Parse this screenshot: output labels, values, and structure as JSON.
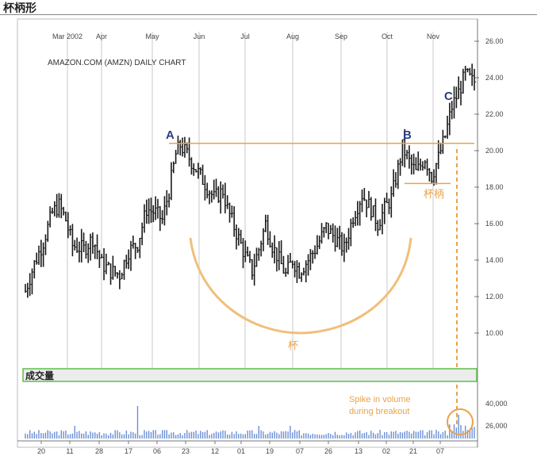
{
  "page_title": "杯柄形",
  "chart_data": {
    "type": "candlestick",
    "title": "AMAZON.COM (AMZN) DAILY CHART",
    "months": [
      "Mar 2002",
      "Apr",
      "May",
      "Jun",
      "Jul",
      "Aug",
      "Sep",
      "Oct",
      "Nov"
    ],
    "x_tick_labels": [
      "20",
      "11",
      "28",
      "17",
      "06",
      "23",
      "12",
      "01",
      "19",
      "07",
      "26",
      "13",
      "02",
      "21",
      "07"
    ],
    "price_axis": {
      "ticks": [
        "26.00",
        "24.00",
        "22.00",
        "20.00",
        "18.00",
        "16.00",
        "14.00",
        "12.00",
        "10.00"
      ],
      "ylim": [
        8.5,
        26.5
      ]
    },
    "volume_axis": {
      "ticks": [
        "40,000",
        "26,000"
      ]
    },
    "volume_label": "成交量",
    "price_path": [
      {
        "x": 0,
        "close": 12.3
      },
      {
        "x": 4,
        "close": 13.8
      },
      {
        "x": 8,
        "close": 15.0
      },
      {
        "x": 12,
        "close": 16.6
      },
      {
        "x": 15,
        "close": 17.0
      },
      {
        "x": 18,
        "close": 16.2
      },
      {
        "x": 21,
        "close": 14.8
      },
      {
        "x": 26,
        "close": 14.6
      },
      {
        "x": 30,
        "close": 15.2
      },
      {
        "x": 34,
        "close": 13.8
      },
      {
        "x": 38,
        "close": 13.4
      },
      {
        "x": 42,
        "close": 13.2
      },
      {
        "x": 46,
        "close": 14.5
      },
      {
        "x": 50,
        "close": 14.9
      },
      {
        "x": 54,
        "close": 16.8
      },
      {
        "x": 58,
        "close": 16.6
      },
      {
        "x": 61,
        "close": 16.2
      },
      {
        "x": 64,
        "close": 17.8
      },
      {
        "x": 67,
        "close": 19.8
      },
      {
        "x": 69,
        "close": 20.3
      },
      {
        "x": 72,
        "close": 19.8
      },
      {
        "x": 76,
        "close": 19.0
      },
      {
        "x": 80,
        "close": 18.2
      },
      {
        "x": 84,
        "close": 17.4
      },
      {
        "x": 88,
        "close": 17.8
      },
      {
        "x": 90,
        "close": 16.8
      },
      {
        "x": 94,
        "close": 15.5
      },
      {
        "x": 98,
        "close": 14.2
      },
      {
        "x": 101,
        "close": 13.4
      },
      {
        "x": 104,
        "close": 14.6
      },
      {
        "x": 107,
        "close": 16.0
      },
      {
        "x": 110,
        "close": 14.8
      },
      {
        "x": 113,
        "close": 14.0
      },
      {
        "x": 116,
        "close": 13.2
      },
      {
        "x": 119,
        "close": 14.0
      },
      {
        "x": 122,
        "close": 13.4
      },
      {
        "x": 126,
        "close": 14.0
      },
      {
        "x": 130,
        "close": 14.8
      },
      {
        "x": 134,
        "close": 15.8
      },
      {
        "x": 138,
        "close": 15.2
      },
      {
        "x": 142,
        "close": 14.6
      },
      {
        "x": 146,
        "close": 16.4
      },
      {
        "x": 150,
        "close": 17.6
      },
      {
        "x": 154,
        "close": 16.8
      },
      {
        "x": 157,
        "close": 16.0
      },
      {
        "x": 160,
        "close": 16.8
      },
      {
        "x": 163,
        "close": 17.4
      },
      {
        "x": 166,
        "close": 19.0
      },
      {
        "x": 168,
        "close": 20.2
      },
      {
        "x": 171,
        "close": 19.4
      },
      {
        "x": 174,
        "close": 18.8
      },
      {
        "x": 178,
        "close": 19.6
      },
      {
        "x": 181,
        "close": 18.6
      },
      {
        "x": 184,
        "close": 19.6
      },
      {
        "x": 187,
        "close": 20.8
      },
      {
        "x": 190,
        "close": 22.4
      },
      {
        "x": 193,
        "close": 23.2
      },
      {
        "x": 196,
        "close": 24.2
      },
      {
        "x": 199,
        "close": 23.8
      }
    ],
    "resistance_level": 20.4,
    "handle_level": 18.2,
    "annotations": {
      "A": "A",
      "B": "B",
      "C": "C",
      "cup": "杯",
      "handle": "杯柄",
      "spike_line1": "Spike in volume",
      "spike_line2": "during breakout"
    },
    "colors": {
      "candles": "#1a1a1a",
      "annotation": "#e8a34a",
      "volume_bars": "#6a8fd8",
      "volume_band": "#5bbf4a",
      "point_labels": "#2c3e80"
    }
  }
}
